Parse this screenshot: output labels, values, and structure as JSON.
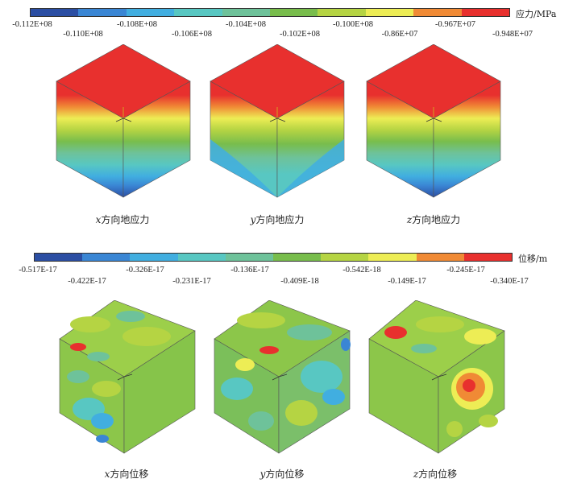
{
  "stress_legend": {
    "unit": "应力/MPa",
    "colors": [
      "#2b4ea3",
      "#3a86d4",
      "#41aee0",
      "#58c7c2",
      "#6ec29a",
      "#78bd4c",
      "#b5d443",
      "#eded55",
      "#f08a35",
      "#e8302e"
    ],
    "ticks_top": [
      "-0.110E+08",
      "-0.106E+08",
      "-0.102E+08",
      "-0.86E+07",
      "-0.948E+07"
    ],
    "ticks_bottom_first": "-0.112E+08",
    "ticks_row": [
      "-0.112E+08",
      "-0.108E+08",
      "-0.104E+08",
      "-0.100E+08",
      "-0.967E+07"
    ]
  },
  "displacement_legend": {
    "unit": "位移/m",
    "colors": [
      "#2b4ea3",
      "#3a86d4",
      "#41aee0",
      "#58c7c2",
      "#6ec29a",
      "#78bd4c",
      "#b5d443",
      "#eded55",
      "#f08a35",
      "#e8302e"
    ],
    "ticks_row1": [
      "-0.517E-17",
      "-0.326E-17",
      "-0.136E-17",
      "-0.542E-18",
      "-0.245E-17"
    ],
    "ticks_row2": [
      "-0.422E-17",
      "-0.231E-17",
      "-0.409E-18",
      "-0.149E-17",
      "-0.340E-17"
    ]
  },
  "stress_captions": [
    {
      "axis": "x",
      "text": "方向地应力"
    },
    {
      "axis": "y",
      "text": "方向地应力"
    },
    {
      "axis": "z",
      "text": "方向地应力"
    }
  ],
  "displacement_captions": [
    {
      "axis": "x",
      "text": "方向位移"
    },
    {
      "axis": "y",
      "text": "方向位移"
    },
    {
      "axis": "z",
      "text": "方向位移"
    }
  ]
}
